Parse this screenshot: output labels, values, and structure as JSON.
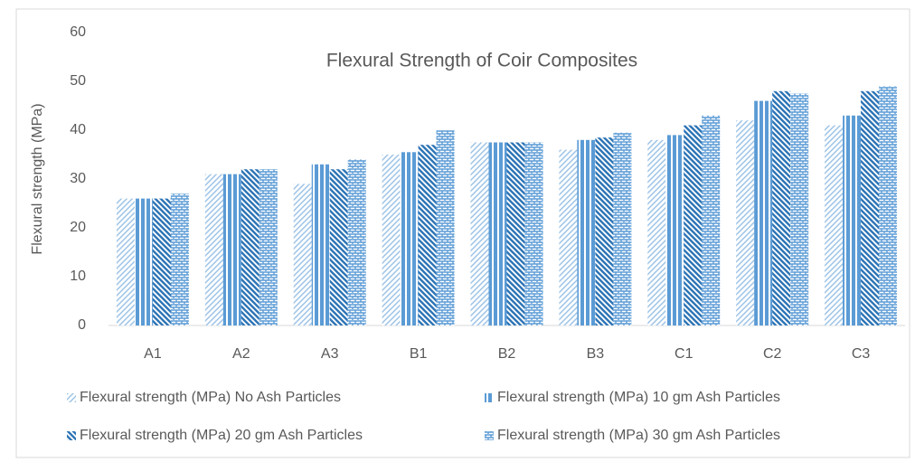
{
  "chart_data": {
    "type": "bar",
    "title": "Flexural Strength of Coir Composites",
    "y_label": "Flexural strength (MPa)",
    "categories": [
      "A1",
      "A2",
      "A3",
      "B1",
      "B2",
      "B3",
      "C1",
      "C2",
      "C3"
    ],
    "series": [
      {
        "name": "Flexural strength (MPa) No Ash Particles",
        "color": "#9dc3e6",
        "values": [
          26,
          31,
          29,
          35,
          37.5,
          36,
          38,
          42,
          41
        ]
      },
      {
        "name": "Flexural strength (MPa) 10 gm Ash Particles",
        "color": "#5b9bd5",
        "values": [
          26,
          31,
          33,
          35.5,
          37.5,
          38,
          39,
          46,
          43
        ]
      },
      {
        "name": "Flexural strength (MPa) 20 gm Ash Particles",
        "color": "#2e75b6",
        "values": [
          26,
          32,
          32,
          37,
          37.5,
          38.5,
          41,
          48,
          48
        ]
      },
      {
        "name": "Flexural strength (MPa) 30 gm Ash Particles",
        "color": "#5b9bd5",
        "values": [
          27,
          32,
          34,
          40,
          37.5,
          39.5,
          43,
          47.5,
          49
        ]
      }
    ],
    "ylim": [
      0,
      60
    ],
    "yticks": [
      0,
      10,
      20,
      30,
      40,
      50,
      60
    ],
    "grid": false
  }
}
